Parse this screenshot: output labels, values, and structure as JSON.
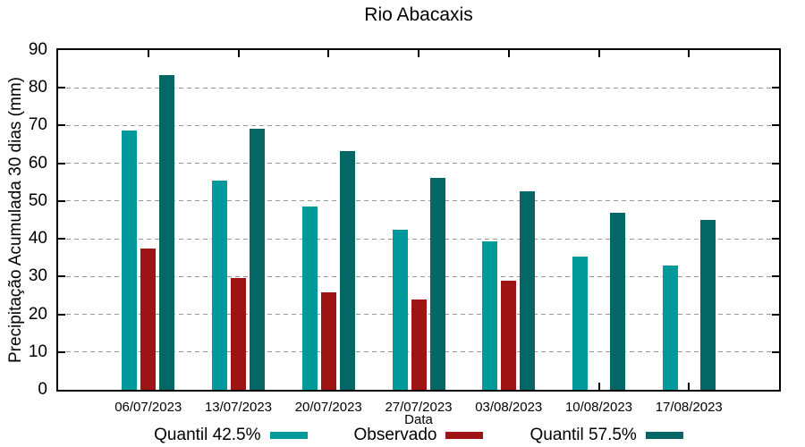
{
  "colors": {
    "quantil_425": "#009A9A",
    "observado": "#9E1313",
    "quantil_575": "#056666",
    "axis": "#000000",
    "grid": "#999999",
    "text": "#000000"
  },
  "chart_data": {
    "type": "bar",
    "title": "Rio Abacaxis",
    "xlabel": "Data",
    "ylabel": "Precipitação Acumulada 30 dias (mm)",
    "ylim": [
      0,
      90
    ],
    "ytick_step": 10,
    "grid": true,
    "legend_position": "bottom",
    "categories": [
      "06/07/2023",
      "13/07/2023",
      "20/07/2023",
      "27/07/2023",
      "03/08/2023",
      "10/08/2023",
      "17/08/2023"
    ],
    "series": [
      {
        "name": "Quantil 42.5%",
        "color": "#009A9A",
        "values": [
          68.6,
          55.4,
          48.5,
          42.4,
          39.4,
          35.2,
          32.9
        ]
      },
      {
        "name": "Observado",
        "color": "#9E1313",
        "values": [
          37.5,
          29.6,
          25.9,
          23.9,
          28.9,
          null,
          null
        ]
      },
      {
        "name": "Quantil 57.5%",
        "color": "#056666",
        "values": [
          83.4,
          69.2,
          63.3,
          56.1,
          52.6,
          47.0,
          45.0
        ]
      }
    ]
  }
}
